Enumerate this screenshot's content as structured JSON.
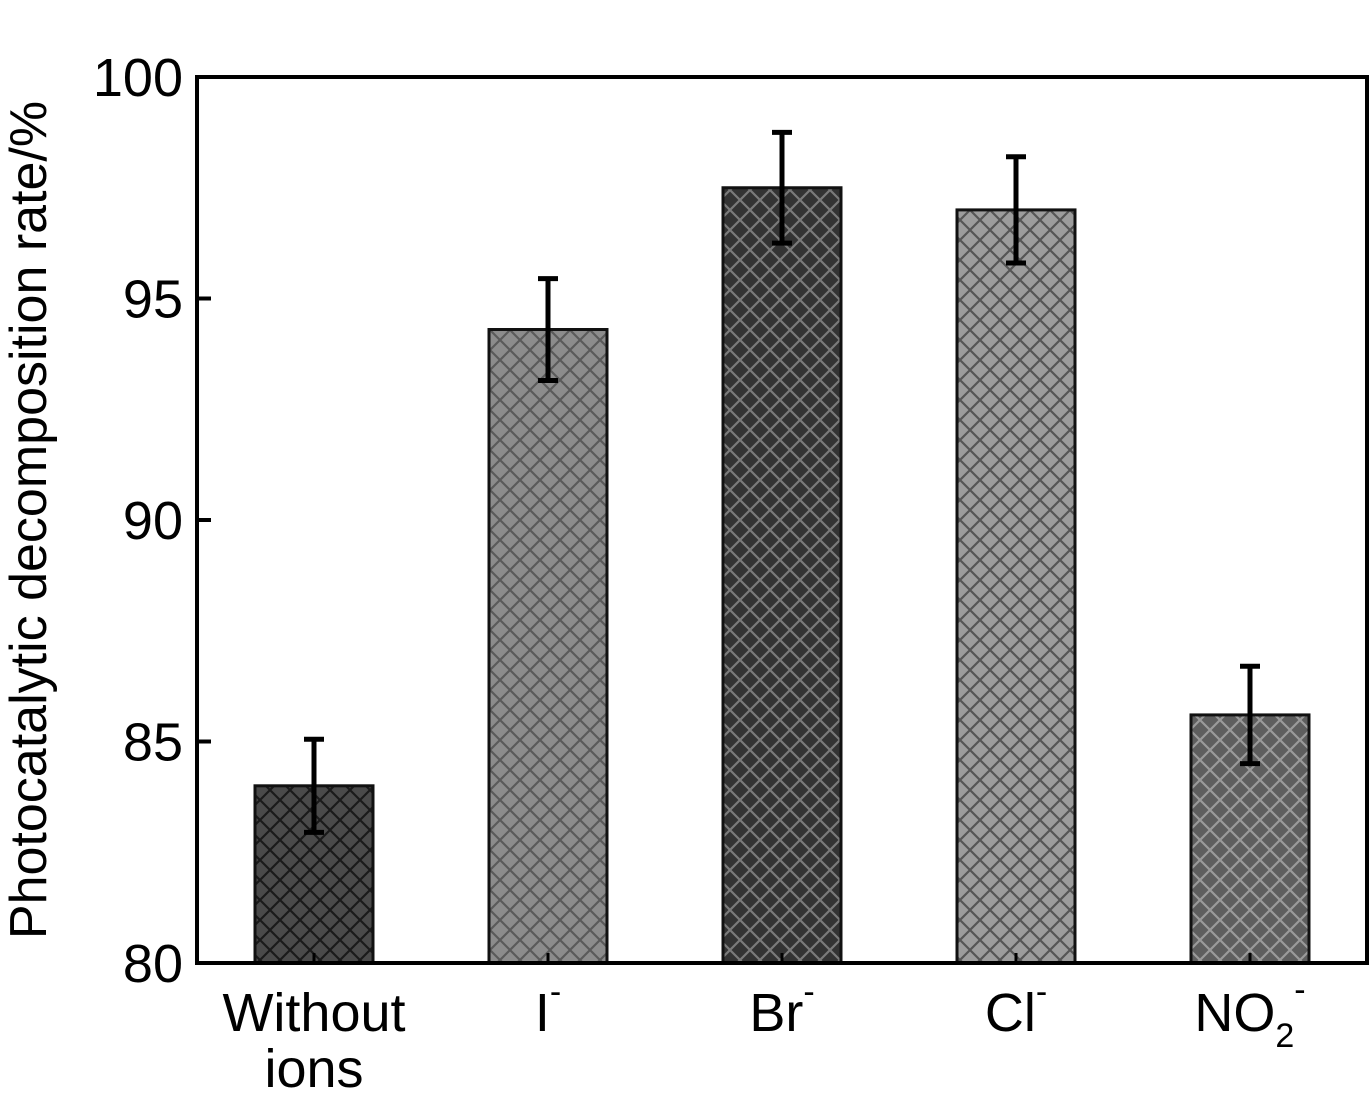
{
  "chart_data": {
    "type": "bar",
    "ylabel": "Photocatalytic decomposition rate/%",
    "xlabel": "",
    "title": "",
    "ylim": [
      80,
      100
    ],
    "yticks": [
      80,
      85,
      90,
      95,
      100
    ],
    "grid": false,
    "categories": [
      {
        "lines": [
          "Without",
          "ions"
        ],
        "base": "",
        "sub": "",
        "sup": ""
      },
      {
        "lines": [],
        "base": "I",
        "sub": "",
        "sup": "-"
      },
      {
        "lines": [],
        "base": "Br",
        "sub": "",
        "sup": "-"
      },
      {
        "lines": [],
        "base": "Cl",
        "sub": "",
        "sup": "-"
      },
      {
        "lines": [],
        "base": "NO",
        "sub": "2",
        "sup": "-"
      }
    ],
    "values": [
      84.0,
      94.3,
      97.5,
      97.0,
      85.6
    ],
    "errors": [
      1.05,
      1.15,
      1.25,
      1.2,
      1.1
    ],
    "bar_colors": [
      "#4a4a4a",
      "#8c8c8c",
      "#333333",
      "#9c9c9c",
      "#5e5e5e"
    ],
    "hatch_colors": [
      "#1a1a1a",
      "#5a5a5a",
      "#7a7a7a",
      "#555555",
      "#9a9a9a"
    ]
  }
}
